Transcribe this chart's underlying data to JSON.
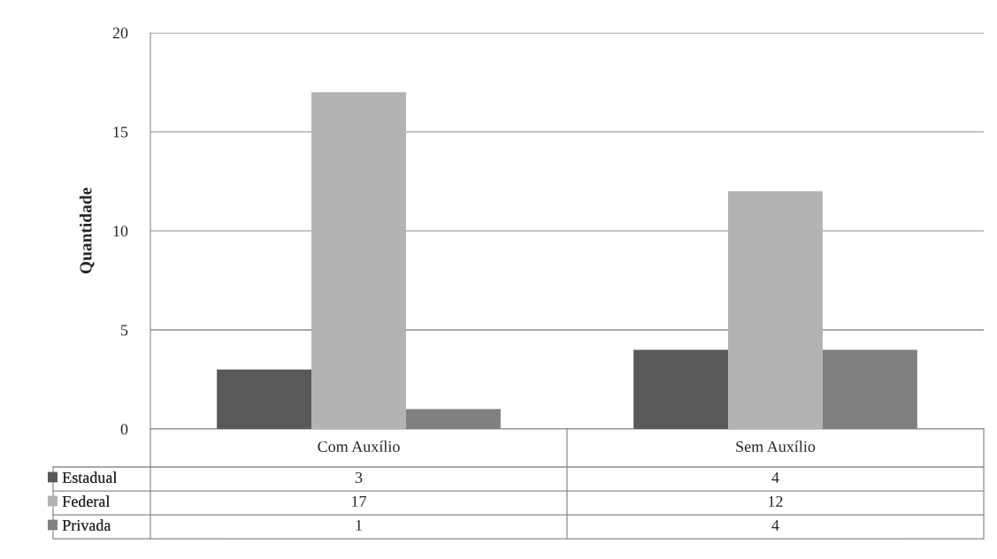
{
  "chart_data": {
    "type": "bar",
    "ylabel": "Quantidade",
    "categories": [
      "Com Auxílio",
      "Sem Auxílio"
    ],
    "series": [
      {
        "name": "Estadual",
        "color": "#595959",
        "values": [
          3,
          4
        ]
      },
      {
        "name": "Federal",
        "color": "#b3b3b3",
        "values": [
          17,
          12
        ]
      },
      {
        "name": "Privada",
        "color": "#808080",
        "values": [
          1,
          4
        ]
      }
    ],
    "ylim": [
      0,
      20
    ],
    "yticks": [
      0,
      5,
      10,
      15,
      20
    ],
    "grid": "y",
    "data_labels": true,
    "legend": "bottom left"
  }
}
